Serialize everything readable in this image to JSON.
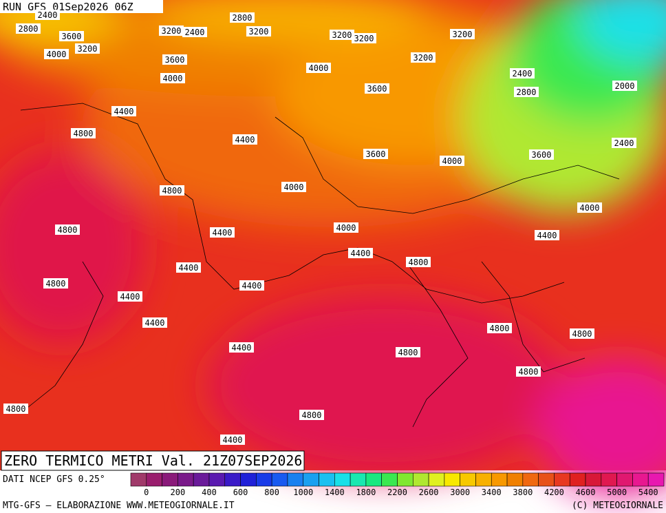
{
  "header": {
    "run": "RUN GFS 01Sep2026 06Z"
  },
  "title": "ZERO TERMICO METRI Val. 21Z07SEP2026",
  "source": "DATI NCEP GFS 0.25°",
  "footer_left": "MTG-GFS — ELABORAZIONE WWW.METEOGIORNALE.IT",
  "footer_right": "(C) METEOGIORNALE",
  "legend": {
    "colors": [
      "#a03a6a",
      "#9a1e6e",
      "#8a1a7a",
      "#7a1a8a",
      "#6a1a9a",
      "#5a1ab0",
      "#3a1ac8",
      "#2020d8",
      "#1a3ae8",
      "#1a5af0",
      "#1a80f0",
      "#1aa0f0",
      "#1ac0f0",
      "#1ae0e8",
      "#1ae8b0",
      "#1ae880",
      "#3ae850",
      "#80e830",
      "#b0e830",
      "#e0f020",
      "#f8e800",
      "#f8c800",
      "#f8b000",
      "#f89800",
      "#f08000",
      "#f06810",
      "#e85018",
      "#e83820",
      "#e02020",
      "#d81838",
      "#e01850",
      "#e01870",
      "#e81890",
      "#e818b0"
    ],
    "labels": [
      0,
      200,
      400,
      600,
      800,
      1000,
      1400,
      1800,
      2200,
      2600,
      3000,
      3400,
      3800,
      4200,
      4600,
      5000,
      5400
    ]
  },
  "contour_labels": [
    2400,
    2800,
    3600,
    3200,
    4000,
    3200,
    2400,
    2800,
    3200,
    3200,
    3200,
    3200,
    3600,
    3200,
    4000,
    4000,
    2400,
    2000,
    3600,
    2800,
    4400,
    4800,
    4400,
    2400,
    3600,
    4000,
    3600,
    4800,
    4000,
    4000,
    4800,
    4400,
    4000,
    4400,
    4400,
    4800,
    4400,
    4800,
    4400,
    4400,
    4400,
    4800,
    4800,
    4400,
    4800,
    4800,
    4800,
    4800,
    4400
  ]
}
